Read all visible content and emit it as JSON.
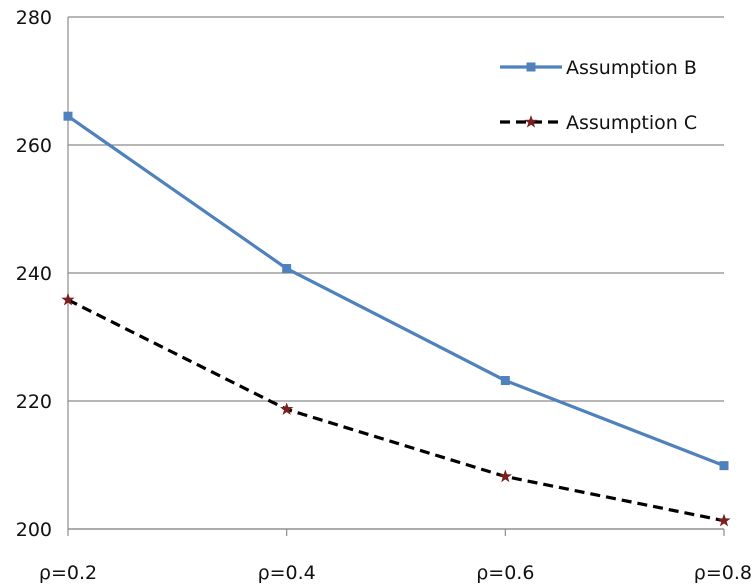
{
  "chart_data": {
    "type": "line",
    "categories": [
      "ρ=0.2",
      "ρ=0.4",
      "ρ=0.6",
      "ρ=0.8"
    ],
    "series": [
      {
        "name": "Assumption B",
        "values": [
          264.5,
          240.7,
          223.2,
          209.9
        ],
        "color": "#4f81bd",
        "line_style": "solid",
        "marker": "square"
      },
      {
        "name": "Assumption C",
        "values": [
          235.8,
          218.7,
          208.2,
          201.3
        ],
        "color": "#000000",
        "marker_color": "#7b1e1e",
        "line_style": "dashed",
        "marker": "star"
      }
    ],
    "y_ticks": [
      "200",
      "220",
      "240",
      "260",
      "280"
    ],
    "ylim": [
      200,
      280
    ],
    "grid": true,
    "legend_position": "top-right"
  }
}
